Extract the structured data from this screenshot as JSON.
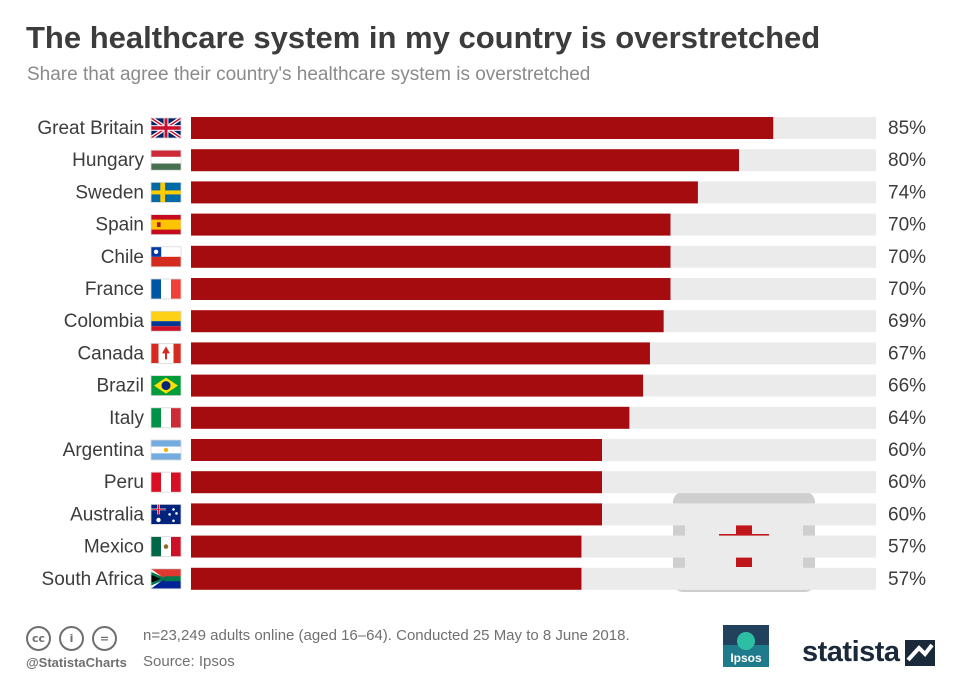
{
  "title": "The healthcare system in my country is overstretched",
  "subtitle": "Share that agree their country's healthcare system is overstretched",
  "colors": {
    "bar": "#a40c10",
    "track": "#ebebeb",
    "label": "#3c3c3c",
    "value": "#3c3c3c",
    "kit": "#cfcfcf",
    "kit_cross": "#c0161b"
  },
  "chart_data": {
    "type": "bar",
    "orientation": "horizontal",
    "categories": [
      "Great Britain",
      "Hungary",
      "Sweden",
      "Spain",
      "Chile",
      "France",
      "Colombia",
      "Canada",
      "Brazil",
      "Italy",
      "Argentina",
      "Peru",
      "Australia",
      "Mexico",
      "South Africa"
    ],
    "values": [
      85,
      80,
      74,
      70,
      70,
      70,
      69,
      67,
      66,
      64,
      60,
      60,
      60,
      57,
      57
    ],
    "value_labels": [
      "85%",
      "80%",
      "74%",
      "70%",
      "70%",
      "70%",
      "69%",
      "67%",
      "66%",
      "64%",
      "60%",
      "60%",
      "60%",
      "57%",
      "57%"
    ],
    "flags": [
      "gb",
      "hu",
      "se",
      "es",
      "cl",
      "fr",
      "co",
      "ca",
      "br",
      "it",
      "ar",
      "pe",
      "au",
      "mx",
      "za"
    ],
    "xlim": [
      0,
      100
    ],
    "grid": false,
    "legend": "none"
  },
  "footer": {
    "license_icons": [
      "cc-icon",
      "attribution-icon",
      "no-derivatives-icon"
    ],
    "license_glyphs": [
      "cc",
      "i",
      "="
    ],
    "handle": "@StatistaCharts",
    "note": "n=23,249 adults online (aged 16–64). Conducted 25 May to 8 June 2018.",
    "source": "Source: Ipsos",
    "ipsos_logo_text": "Ipsos",
    "brand": "statista"
  }
}
